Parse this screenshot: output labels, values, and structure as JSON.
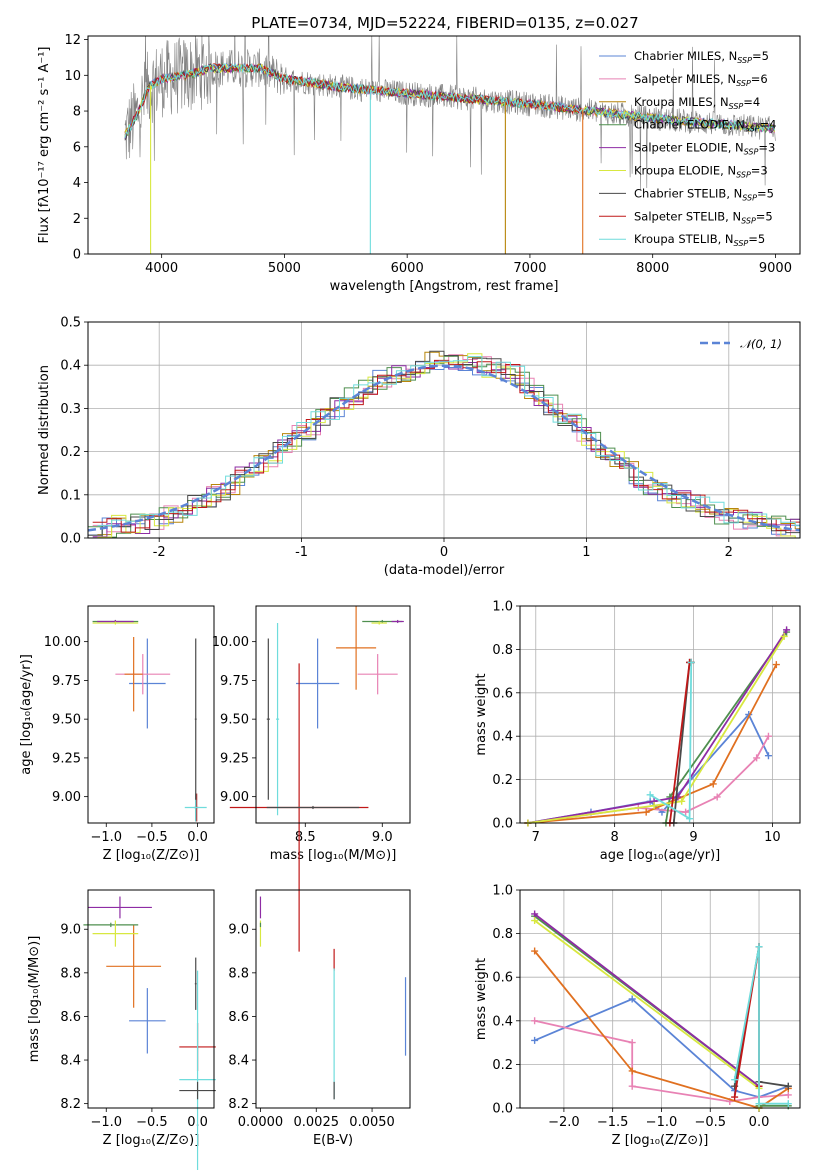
{
  "figure": {
    "title": "PLATE=0734, MJD=52224, FIBERID=0135, z=0.027"
  },
  "chart_data": [
    {
      "id": "spectrum",
      "type": "line",
      "xlabel": "wavelength [Angstrom, rest frame]",
      "ylabel": "Flux [fλ10⁻¹⁷ erg cm⁻² s⁻¹ A⁻¹]",
      "xlim": [
        3400,
        9200
      ],
      "ylim": [
        0,
        12.2
      ],
      "xticks": [
        4000,
        5000,
        6000,
        7000,
        8000,
        9000
      ],
      "yticks": [
        0,
        2,
        4,
        6,
        8,
        10,
        12
      ],
      "legend_position": "top-right",
      "data_wavelength_range": [
        3700,
        9000
      ],
      "spectrum_anchor_points": [
        {
          "x": 3700,
          "y": 6.6
        },
        {
          "x": 3800,
          "y": 7.8
        },
        {
          "x": 3900,
          "y": 9.4
        },
        {
          "x": 4000,
          "y": 9.8
        },
        {
          "x": 4200,
          "y": 10.0
        },
        {
          "x": 4400,
          "y": 10.4
        },
        {
          "x": 4800,
          "y": 10.4
        },
        {
          "x": 5000,
          "y": 9.8
        },
        {
          "x": 5500,
          "y": 9.3
        },
        {
          "x": 6000,
          "y": 9.0
        },
        {
          "x": 6500,
          "y": 8.7
        },
        {
          "x": 7000,
          "y": 8.4
        },
        {
          "x": 7500,
          "y": 8.0
        },
        {
          "x": 8000,
          "y": 7.6
        },
        {
          "x": 8500,
          "y": 7.3
        },
        {
          "x": 9000,
          "y": 7.0
        }
      ],
      "series": [
        {
          "name": "Chabrier MILES, N_SSP=5",
          "label_main": "Chabrier MILES, N",
          "label_sub": "SSP",
          "label_tail": "=5",
          "color": "#5b84d6"
        },
        {
          "name": "Salpeter MILES, N_SSP=6",
          "label_main": "Salpeter MILES, N",
          "label_sub": "SSP",
          "label_tail": "=6",
          "color": "#e882b4"
        },
        {
          "name": "Kroupa MILES, N_SSP=4",
          "label_main": "Kroupa MILES, N",
          "label_sub": "SSP",
          "label_tail": "=4",
          "color": "#b8860b"
        },
        {
          "name": "Chabrier ELODIE, N_SSP=4",
          "label_main": "Chabrier ELODIE, N",
          "label_sub": "SSP",
          "label_tail": "=4",
          "color": "#4f8f4f"
        },
        {
          "name": "Salpeter ELODIE, N_SSP=3",
          "label_main": "Salpeter ELODIE, N",
          "label_sub": "SSP",
          "label_tail": "=3",
          "color": "#8e2ca4"
        },
        {
          "name": "Kroupa ELODIE, N_SSP=3",
          "label_main": "Kroupa ELODIE, N",
          "label_sub": "SSP",
          "label_tail": "=3",
          "color": "#d8e840"
        },
        {
          "name": "Chabrier STELIB, N_SSP=5",
          "label_main": "Chabrier STELIB, N",
          "label_sub": "SSP",
          "label_tail": "=5",
          "color": "#4a4a4a"
        },
        {
          "name": "Salpeter STELIB, N_SSP=5",
          "label_main": "Salpeter STELIB, N",
          "label_sub": "SSP",
          "label_tail": "=5",
          "color": "#c01818"
        },
        {
          "name": "Kroupa STELIB, N_SSP=5",
          "label_main": "Kroupa STELIB, N",
          "label_sub": "SSP",
          "label_tail": "=5",
          "color": "#6fdcdc"
        }
      ],
      "observed_color": "#808080"
    },
    {
      "id": "residuals",
      "type": "line",
      "xlabel": "(data-model)/error",
      "ylabel": "Normed distribution",
      "xlim": [
        -2.5,
        2.5
      ],
      "ylim": [
        0,
        0.5
      ],
      "xticks": [
        -2,
        -1,
        0,
        1,
        2
      ],
      "yticks": [
        0.0,
        0.1,
        0.2,
        0.3,
        0.4,
        0.5
      ],
      "ytick_labels": [
        "0.0",
        "0.1",
        "0.2",
        "0.3",
        "0.4",
        "0.5"
      ],
      "grid": true,
      "legend_position": "top-right",
      "reference_curve": {
        "label": "𝒩(0, 1)",
        "mean": 0,
        "sigma": 1,
        "color": "#5b84d6",
        "style": "dashed"
      },
      "bin_width": 0.1,
      "histogram_envelope": [
        {
          "x": -2.5,
          "y": 0.02
        },
        {
          "x": -2.0,
          "y": 0.04
        },
        {
          "x": -1.5,
          "y": 0.12
        },
        {
          "x": -1.0,
          "y": 0.24
        },
        {
          "x": -0.5,
          "y": 0.36
        },
        {
          "x": 0.0,
          "y": 0.42
        },
        {
          "x": 0.5,
          "y": 0.38
        },
        {
          "x": 1.0,
          "y": 0.24
        },
        {
          "x": 1.5,
          "y": 0.11
        },
        {
          "x": 2.0,
          "y": 0.05
        },
        {
          "x": 2.5,
          "y": 0.02
        }
      ]
    },
    {
      "id": "age-vs-z",
      "type": "scatter",
      "xlabel": "Z [log₁₀(Z/Z⊙)]",
      "ylabel": "age  [log₁₀(age/yr)]",
      "xlim": [
        -1.2,
        0.18
      ],
      "ylim": [
        8.83,
        10.23
      ],
      "xticks": [
        -1.0,
        -0.5,
        0.0
      ],
      "xtick_labels": [
        "−1.0",
        "−0.5",
        "0.0"
      ],
      "yticks": [
        9.0,
        9.25,
        9.5,
        9.75,
        10.0
      ],
      "ytick_labels": [
        "9.00",
        "9.25",
        "9.50",
        "9.75",
        "10.00"
      ],
      "points": [
        {
          "color": "#5b84d6",
          "x": -0.55,
          "y": 9.73,
          "xerr": 0.2,
          "yerr": 0.29
        },
        {
          "color": "#e882b4",
          "x": -0.6,
          "y": 9.79,
          "xerr": 0.3,
          "yerr": 0.13
        },
        {
          "color": "#e07020",
          "x": -0.7,
          "y": 9.79,
          "xerr": 0.1,
          "yerr": 0.24
        },
        {
          "color": "#4f8f4f",
          "x": -0.9,
          "y": 10.13,
          "xerr": 0.25,
          "yerr": 0.01
        },
        {
          "color": "#8e2ca4",
          "x": -0.9,
          "y": 10.13,
          "xerr": 0.2,
          "yerr": 0.01
        },
        {
          "color": "#d8e840",
          "x": -0.9,
          "y": 10.12,
          "xerr": 0.25,
          "yerr": 0.01
        },
        {
          "color": "#4a4a4a",
          "x": -0.02,
          "y": 8.93,
          "xerr": 0.02,
          "yerr": 0.09
        },
        {
          "color": "#c01818",
          "x": -0.01,
          "y": 8.93,
          "xerr": 0.02,
          "yerr": 0.09
        },
        {
          "color": "#6fdcdc",
          "x": -0.02,
          "y": 8.93,
          "xerr": 0.12,
          "yerr": 0.09
        },
        {
          "color": "#4a4a4a",
          "x": -0.02,
          "y": 9.5,
          "xerr": 0.01,
          "yerr": 0.52
        }
      ]
    },
    {
      "id": "age-vs-mass",
      "type": "scatter",
      "xlabel": "mass [log₁₀(M/M⊙)]",
      "xlim": [
        8.18,
        9.18
      ],
      "ylim": [
        8.83,
        10.23
      ],
      "xticks": [
        8.5,
        9.0
      ],
      "xtick_labels": [
        "8.5",
        "9.0"
      ],
      "yticks": [
        9.0,
        9.25,
        9.5,
        9.75,
        10.0
      ],
      "ytick_labels": [
        "9.00",
        "9.25",
        "9.50",
        "9.75",
        "10.00"
      ],
      "points": [
        {
          "color": "#5b84d6",
          "x": 8.58,
          "y": 9.73,
          "xerr": 0.14,
          "yerr": 0.29
        },
        {
          "color": "#e882b4",
          "x": 8.97,
          "y": 9.79,
          "xerr": 0.13,
          "yerr": 0.13
        },
        {
          "color": "#e07020",
          "x": 8.83,
          "y": 9.96,
          "xerr": 0.13,
          "yerr": 0.27
        },
        {
          "color": "#4f8f4f",
          "x": 9.0,
          "y": 10.13,
          "xerr": 0.13,
          "yerr": 0.01
        },
        {
          "color": "#8e2ca4",
          "x": 9.1,
          "y": 10.13,
          "xerr": 0.04,
          "yerr": 0.01
        },
        {
          "color": "#d8e840",
          "x": 8.98,
          "y": 10.12,
          "xerr": 0.05,
          "yerr": 0.01
        },
        {
          "color": "#c01818",
          "x": 8.46,
          "y": 8.93,
          "xerr": 0.45,
          "yerr": 0.93
        },
        {
          "color": "#6fdcdc",
          "x": 8.32,
          "y": 9.5,
          "xerr": 0.01,
          "yerr": 0.62
        },
        {
          "color": "#4a4a4a",
          "x": 8.26,
          "y": 9.5,
          "xerr": 0.01,
          "yerr": 0.52
        },
        {
          "color": "#4a4a4a",
          "x": 8.55,
          "y": 8.93,
          "xerr": 0.3,
          "yerr": 0.01
        }
      ]
    },
    {
      "id": "massweight-vs-age",
      "type": "line",
      "xlabel": "age  [log₁₀(age/yr)]",
      "ylabel": "mass weight",
      "xlim": [
        6.8,
        10.35
      ],
      "ylim": [
        0,
        1.0
      ],
      "xticks": [
        7,
        8,
        9,
        10
      ],
      "yticks": [
        0.0,
        0.2,
        0.4,
        0.6,
        0.8,
        1.0
      ],
      "ytick_labels": [
        "0.0",
        "0.2",
        "0.4",
        "0.6",
        "0.8",
        "1.0"
      ],
      "grid": true,
      "series": [
        {
          "name": "Chabrier MILES",
          "color": "#5b84d6",
          "x": [
            6.9,
            7.7,
            8.45,
            8.6,
            9.7,
            9.95
          ],
          "y": [
            0.0,
            0.05,
            0.1,
            0.05,
            0.5,
            0.31
          ]
        },
        {
          "name": "Salpeter MILES",
          "color": "#e882b4",
          "x": [
            6.9,
            8.3,
            8.9,
            9.3,
            9.8,
            9.95
          ],
          "y": [
            0.0,
            0.07,
            0.05,
            0.12,
            0.3,
            0.4
          ]
        },
        {
          "name": "Kroupa MILES",
          "color": "#e07020",
          "x": [
            6.9,
            8.4,
            9.25,
            10.05
          ],
          "y": [
            0.0,
            0.05,
            0.18,
            0.73
          ]
        },
        {
          "name": "Chabrier ELODIE",
          "color": "#4f8f4f",
          "x": [
            8.65,
            8.7,
            10.18
          ],
          "y": [
            0.0,
            0.12,
            0.88
          ]
        },
        {
          "name": "Salpeter ELODIE",
          "color": "#8e2ca4",
          "x": [
            6.9,
            8.5,
            8.8,
            10.18
          ],
          "y": [
            0.0,
            0.1,
            0.12,
            0.89
          ]
        },
        {
          "name": "Kroupa ELODIE",
          "color": "#d8e840",
          "x": [
            6.9,
            8.5,
            8.85,
            10.15
          ],
          "y": [
            0.0,
            0.08,
            0.1,
            0.86
          ]
        },
        {
          "name": "Chabrier STELIB",
          "color": "#4a4a4a",
          "x": [
            8.75,
            8.95,
            8.97
          ],
          "y": [
            0.0,
            0.74,
            0.74
          ]
        },
        {
          "name": "Salpeter STELIB",
          "color": "#c01818",
          "x": [
            8.7,
            8.95,
            8.97
          ],
          "y": [
            0.0,
            0.74,
            0.74
          ]
        },
        {
          "name": "Kroupa STELIB",
          "color": "#6fdcdc",
          "x": [
            8.45,
            8.95,
            8.97
          ],
          "y": [
            0.13,
            0.02,
            0.74
          ]
        }
      ]
    },
    {
      "id": "mass-vs-z",
      "type": "scatter",
      "xlabel": "Z [log₁₀(Z/Z⊙)]",
      "ylabel": "mass [log₁₀(M/M⊙)]",
      "xlim": [
        -1.2,
        0.18
      ],
      "ylim": [
        8.18,
        9.18
      ],
      "xticks": [
        -1.0,
        -0.5,
        0.0
      ],
      "xtick_labels": [
        "−1.0",
        "−0.5",
        "0.0"
      ],
      "yticks": [
        8.2,
        8.4,
        8.6,
        8.8,
        9.0
      ],
      "ytick_labels": [
        "8.2",
        "8.4",
        "8.6",
        "8.8",
        "9.0"
      ],
      "points": [
        {
          "color": "#5b84d6",
          "x": -0.55,
          "y": 8.58,
          "xerr": 0.2,
          "yerr": 0.15
        },
        {
          "color": "#e07020",
          "x": -0.7,
          "y": 8.83,
          "xerr": 0.3,
          "yerr": 0.19
        },
        {
          "color": "#4f8f4f",
          "x": -0.95,
          "y": 9.02,
          "xerr": 0.3,
          "yerr": 0.01
        },
        {
          "color": "#8e2ca4",
          "x": -0.85,
          "y": 9.1,
          "xerr": 0.35,
          "yerr": 0.05
        },
        {
          "color": "#d8e840",
          "x": -0.9,
          "y": 8.98,
          "xerr": 0.25,
          "yerr": 0.06
        },
        {
          "color": "#c01818",
          "x": 0.0,
          "y": 8.46,
          "xerr": 0.2,
          "yerr": 0.11
        },
        {
          "color": "#6fdcdc",
          "x": 0.0,
          "y": 8.31,
          "xerr": 0.2,
          "yerr": 0.5
        },
        {
          "color": "#4a4a4a",
          "x": 0.0,
          "y": 8.26,
          "xerr": 0.2,
          "yerr": 0.04
        },
        {
          "color": "#4a4a4a",
          "x": -0.02,
          "y": 8.75,
          "xerr": 0.01,
          "yerr": 0.12
        }
      ]
    },
    {
      "id": "mass-vs-ebv",
      "type": "scatter",
      "xlabel": "E(B-V)",
      "xlim": [
        -0.0002,
        0.0067
      ],
      "ylim": [
        8.18,
        9.18
      ],
      "xticks": [
        0.0,
        0.0025,
        0.005
      ],
      "xtick_labels": [
        "0.0000",
        "0.0025",
        "0.0050"
      ],
      "yticks": [
        8.2,
        8.4,
        8.6,
        8.8,
        9.0
      ],
      "ytick_labels": [
        "8.2",
        "8.4",
        "8.6",
        "8.8",
        "9.0"
      ],
      "points": [
        {
          "color": "#8e2ca4",
          "x": 0.0,
          "y": 9.1,
          "xerr": 0,
          "yerr": 0.05
        },
        {
          "color": "#d8e840",
          "x": 0.0,
          "y": 8.98,
          "xerr": 0,
          "yerr": 0.06
        },
        {
          "color": "#4f8f4f",
          "x": 0.0,
          "y": 9.02,
          "xerr": 0,
          "yerr": 0.01
        },
        {
          "color": "#c01818",
          "x": 0.0033,
          "y": 8.86,
          "xerr": 0,
          "yerr": 0.05
        },
        {
          "color": "#6fdcdc",
          "x": 0.0033,
          "y": 8.52,
          "xerr": 0,
          "yerr": 0.3
        },
        {
          "color": "#4a4a4a",
          "x": 0.0033,
          "y": 8.26,
          "xerr": 0,
          "yerr": 0.04
        },
        {
          "color": "#5b84d6",
          "x": 0.0065,
          "y": 8.6,
          "xerr": 0,
          "yerr": 0.18
        }
      ]
    },
    {
      "id": "massweight-vs-z",
      "type": "line",
      "xlabel": "Z [log₁₀(Z/Z⊙)]",
      "ylabel": "mass weight",
      "xlim": [
        -2.45,
        0.42
      ],
      "ylim": [
        0,
        1.0
      ],
      "xticks": [
        -2.0,
        -1.5,
        -1.0,
        -0.5,
        0.0
      ],
      "xtick_labels": [
        "−2.0",
        "−1.5",
        "−1.0",
        "−0.5",
        "0.0"
      ],
      "yticks": [
        0.0,
        0.2,
        0.4,
        0.6,
        0.8,
        1.0
      ],
      "ytick_labels": [
        "0.0",
        "0.2",
        "0.4",
        "0.6",
        "0.8",
        "1.0"
      ],
      "grid": true,
      "series": [
        {
          "name": "Chabrier MILES",
          "color": "#5b84d6",
          "x": [
            -2.3,
            -1.3,
            -0.25,
            0.0,
            0.3
          ],
          "y": [
            0.31,
            0.5,
            0.08,
            0.05,
            0.1
          ]
        },
        {
          "name": "Salpeter MILES",
          "color": "#e882b4",
          "x": [
            -2.3,
            -1.3,
            -1.3,
            -0.3,
            0.0,
            0.3
          ],
          "y": [
            0.4,
            0.3,
            0.1,
            0.03,
            0.05,
            0.06
          ]
        },
        {
          "name": "Kroupa MILES",
          "color": "#e07020",
          "x": [
            -2.3,
            -1.3,
            0.0,
            0.3
          ],
          "y": [
            0.72,
            0.17,
            0.0,
            0.09
          ]
        },
        {
          "name": "Chabrier ELODIE",
          "color": "#4f8f4f",
          "x": [
            -2.3,
            0.0,
            0.0,
            0.3
          ],
          "y": [
            0.88,
            0.1,
            0.01,
            0.01
          ]
        },
        {
          "name": "Salpeter ELODIE",
          "color": "#8e2ca4",
          "x": [
            -2.3,
            0.0,
            0.0
          ],
          "y": [
            0.89,
            0.1,
            0.0
          ]
        },
        {
          "name": "Kroupa ELODIE",
          "color": "#d8e840",
          "x": [
            -2.3,
            0.0,
            0.0
          ],
          "y": [
            0.86,
            0.09,
            0.0
          ]
        },
        {
          "name": "Chabrier STELIB",
          "color": "#4a4a4a",
          "x": [
            -0.25,
            0.0,
            0.0,
            0.3
          ],
          "y": [
            0.1,
            0.74,
            0.12,
            0.1
          ]
        },
        {
          "name": "Salpeter STELIB",
          "color": "#c01818",
          "x": [
            -0.25,
            0.0,
            0.0
          ],
          "y": [
            0.05,
            0.74,
            0.1
          ]
        },
        {
          "name": "Kroupa STELIB",
          "color": "#6fdcdc",
          "x": [
            -0.25,
            0.0,
            0.0,
            0.3
          ],
          "y": [
            0.13,
            0.74,
            0.02,
            0.02
          ]
        }
      ]
    }
  ]
}
